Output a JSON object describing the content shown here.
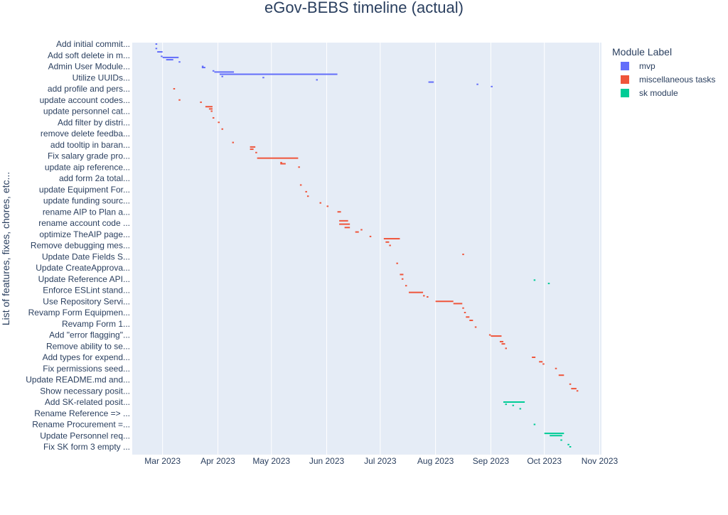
{
  "chart_data": {
    "type": "gantt",
    "title": "eGov-BEBS timeline (actual)",
    "xlabel": "",
    "ylabel": "List of features, fixes, chores, etc...",
    "x_ticks": [
      "Mar 2023",
      "Apr 2023",
      "May 2023",
      "Jun 2023",
      "Jul 2023",
      "Aug 2023",
      "Sep 2023",
      "Oct 2023",
      "Nov 2023"
    ],
    "x_tick_dates": [
      "2023-03-01",
      "2023-04-01",
      "2023-05-01",
      "2023-06-01",
      "2023-07-01",
      "2023-08-01",
      "2023-09-01",
      "2023-10-01",
      "2023-11-01"
    ],
    "xlim": [
      "2023-02-12",
      "2023-11-02"
    ],
    "y_labels": [
      "Add initial commit...",
      "Add soft delete in m...",
      "Admin User Module...",
      "Utilize UUIDs...",
      "add profile and pers...",
      "update account codes...",
      "update personnel cat...",
      "Add filter by distri...",
      "remove delete feedba...",
      "add tooltip in baran...",
      "Fix salary grade pro...",
      "update aip reference...",
      "add form 2a total...",
      "update Equipment For...",
      "update funding sourc...",
      "rename AIP to Plan a...",
      "rename account code ...",
      "optimize TheAIP page...",
      "Remove debugging mes...",
      "Update Date Fields S...",
      "Update CreateApprova...",
      "Update Reference API...",
      "Enforce ESLint stand...",
      "Use Repository Servi...",
      "Revamp Form Equipmen...",
      "Revamp Form 1...",
      "Add \"error flagging\"...",
      "Remove ability to se...",
      "Add types for expend...",
      "Fix permissions seed...",
      "Update README.md and...",
      "Show necessary posit...",
      "Add SK-related posit...",
      "Rename Reference => ...",
      "Rename Procurement =...",
      "Update Personnel req...",
      "Fix SK form 3 empty ..."
    ],
    "legend_title": "Module Label",
    "legend_position": "top-right",
    "grid": true,
    "series": [
      {
        "name": "mvp",
        "color": "#636efa",
        "tasks": [
          {
            "row": 0,
            "start": "2023-02-25",
            "end": "2023-02-26"
          },
          {
            "row": 0.4,
            "start": "2023-02-25",
            "end": "2023-02-26"
          },
          {
            "row": 0.7,
            "start": "2023-02-26",
            "end": "2023-03-01"
          },
          {
            "row": 1.1,
            "start": "2023-02-28",
            "end": "2023-03-01"
          },
          {
            "row": 1.2,
            "start": "2023-03-01",
            "end": "2023-03-10"
          },
          {
            "row": 1.4,
            "start": "2023-03-03",
            "end": "2023-03-07"
          },
          {
            "row": 1.6,
            "start": "2023-03-10",
            "end": "2023-03-11"
          },
          {
            "row": 2.0,
            "start": "2023-03-23",
            "end": "2023-03-24"
          },
          {
            "row": 2.1,
            "start": "2023-03-23",
            "end": "2023-03-25"
          },
          {
            "row": 2.4,
            "start": "2023-03-29",
            "end": "2023-03-30"
          },
          {
            "row": 2.5,
            "start": "2023-03-30",
            "end": "2023-04-10"
          },
          {
            "row": 2.7,
            "start": "2023-04-02",
            "end": "2023-06-07"
          },
          {
            "row": 2.9,
            "start": "2023-04-03",
            "end": "2023-04-04"
          },
          {
            "row": 3.0,
            "start": "2023-04-26",
            "end": "2023-04-27"
          },
          {
            "row": 3.2,
            "start": "2023-05-26",
            "end": "2023-05-27"
          },
          {
            "row": 3.4,
            "start": "2023-07-28",
            "end": "2023-07-31"
          },
          {
            "row": 3.6,
            "start": "2023-08-24",
            "end": "2023-08-25"
          },
          {
            "row": 3.8,
            "start": "2023-09-01",
            "end": "2023-09-02"
          }
        ]
      },
      {
        "name": "miscellaneous tasks",
        "color": "#ef553b",
        "tasks": [
          {
            "row": 4.0,
            "start": "2023-03-07",
            "end": "2023-03-08"
          },
          {
            "row": 5.0,
            "start": "2023-03-10",
            "end": "2023-03-11"
          },
          {
            "row": 5.2,
            "start": "2023-03-22",
            "end": "2023-03-23"
          },
          {
            "row": 5.6,
            "start": "2023-03-25",
            "end": "2023-03-29"
          },
          {
            "row": 5.8,
            "start": "2023-03-27",
            "end": "2023-03-29"
          },
          {
            "row": 6.0,
            "start": "2023-03-28",
            "end": "2023-03-29"
          },
          {
            "row": 6.6,
            "start": "2023-03-29",
            "end": "2023-03-30"
          },
          {
            "row": 7.0,
            "start": "2023-04-01",
            "end": "2023-04-02"
          },
          {
            "row": 7.6,
            "start": "2023-04-03",
            "end": "2023-04-04"
          },
          {
            "row": 8.8,
            "start": "2023-04-09",
            "end": "2023-04-10"
          },
          {
            "row": 9.2,
            "start": "2023-04-19",
            "end": "2023-04-22"
          },
          {
            "row": 9.4,
            "start": "2023-04-19",
            "end": "2023-04-21"
          },
          {
            "row": 9.7,
            "start": "2023-04-22",
            "end": "2023-04-23"
          },
          {
            "row": 10.2,
            "start": "2023-04-23",
            "end": "2023-05-16"
          },
          {
            "row": 10.6,
            "start": "2023-05-06",
            "end": "2023-05-07"
          },
          {
            "row": 10.7,
            "start": "2023-05-06",
            "end": "2023-05-09"
          },
          {
            "row": 11.0,
            "start": "2023-05-16",
            "end": "2023-05-17"
          },
          {
            "row": 12.6,
            "start": "2023-05-17",
            "end": "2023-05-18"
          },
          {
            "row": 13.2,
            "start": "2023-05-20",
            "end": "2023-05-21"
          },
          {
            "row": 13.6,
            "start": "2023-05-21",
            "end": "2023-05-22"
          },
          {
            "row": 14.2,
            "start": "2023-05-28",
            "end": "2023-05-29"
          },
          {
            "row": 14.5,
            "start": "2023-06-01",
            "end": "2023-06-02"
          },
          {
            "row": 15.0,
            "start": "2023-06-07",
            "end": "2023-06-09"
          },
          {
            "row": 15.8,
            "start": "2023-06-08",
            "end": "2023-06-13"
          },
          {
            "row": 16.1,
            "start": "2023-06-08",
            "end": "2023-06-14"
          },
          {
            "row": 16.4,
            "start": "2023-06-11",
            "end": "2023-06-14"
          },
          {
            "row": 16.6,
            "start": "2023-06-20",
            "end": "2023-06-21"
          },
          {
            "row": 16.8,
            "start": "2023-06-17",
            "end": "2023-06-19"
          },
          {
            "row": 17.2,
            "start": "2023-06-25",
            "end": "2023-06-26"
          },
          {
            "row": 17.4,
            "start": "2023-07-03",
            "end": "2023-07-12"
          },
          {
            "row": 17.7,
            "start": "2023-07-04",
            "end": "2023-07-06"
          },
          {
            "row": 18.0,
            "start": "2023-07-06",
            "end": "2023-07-07"
          },
          {
            "row": 18.8,
            "start": "2023-08-16",
            "end": "2023-08-17"
          },
          {
            "row": 19.6,
            "start": "2023-07-10",
            "end": "2023-07-11"
          },
          {
            "row": 20.6,
            "start": "2023-07-12",
            "end": "2023-07-14"
          },
          {
            "row": 21.0,
            "start": "2023-07-13",
            "end": "2023-07-14"
          },
          {
            "row": 21.6,
            "start": "2023-07-15",
            "end": "2023-07-16"
          },
          {
            "row": 22.2,
            "start": "2023-07-17",
            "end": "2023-07-25"
          },
          {
            "row": 22.5,
            "start": "2023-07-25",
            "end": "2023-07-26"
          },
          {
            "row": 22.6,
            "start": "2023-07-27",
            "end": "2023-07-28"
          },
          {
            "row": 23.0,
            "start": "2023-08-01",
            "end": "2023-08-11"
          },
          {
            "row": 23.2,
            "start": "2023-08-11",
            "end": "2023-08-16"
          },
          {
            "row": 23.6,
            "start": "2023-08-16",
            "end": "2023-08-17"
          },
          {
            "row": 24.0,
            "start": "2023-08-17",
            "end": "2023-08-18"
          },
          {
            "row": 24.4,
            "start": "2023-08-18",
            "end": "2023-08-20"
          },
          {
            "row": 24.7,
            "start": "2023-08-20",
            "end": "2023-08-22"
          },
          {
            "row": 25.3,
            "start": "2023-08-23",
            "end": "2023-08-24"
          },
          {
            "row": 26.0,
            "start": "2023-08-31",
            "end": "2023-09-01"
          },
          {
            "row": 26.1,
            "start": "2023-09-01",
            "end": "2023-09-07"
          },
          {
            "row": 26.6,
            "start": "2023-09-06",
            "end": "2023-09-08"
          },
          {
            "row": 26.8,
            "start": "2023-09-07",
            "end": "2023-09-09"
          },
          {
            "row": 27.2,
            "start": "2023-09-09",
            "end": "2023-09-10"
          },
          {
            "row": 28.0,
            "start": "2023-09-24",
            "end": "2023-09-26"
          },
          {
            "row": 28.4,
            "start": "2023-09-28",
            "end": "2023-09-30"
          },
          {
            "row": 28.6,
            "start": "2023-09-30",
            "end": "2023-10-01"
          },
          {
            "row": 29.0,
            "start": "2023-10-07",
            "end": "2023-10-08"
          },
          {
            "row": 29.6,
            "start": "2023-10-09",
            "end": "2023-10-12"
          },
          {
            "row": 30.4,
            "start": "2023-10-15",
            "end": "2023-10-16"
          },
          {
            "row": 30.8,
            "start": "2023-10-16",
            "end": "2023-10-19"
          },
          {
            "row": 31.0,
            "start": "2023-10-19",
            "end": "2023-10-20"
          }
        ]
      },
      {
        "name": "sk module",
        "color": "#00cc96",
        "tasks": [
          {
            "row": 21.1,
            "start": "2023-09-25",
            "end": "2023-09-26"
          },
          {
            "row": 21.4,
            "start": "2023-10-03",
            "end": "2023-10-04"
          },
          {
            "row": 32.0,
            "start": "2023-09-08",
            "end": "2023-09-20"
          },
          {
            "row": 32.2,
            "start": "2023-09-09",
            "end": "2023-09-10"
          },
          {
            "row": 32.3,
            "start": "2023-09-13",
            "end": "2023-09-14"
          },
          {
            "row": 32.6,
            "start": "2023-09-17",
            "end": "2023-09-18"
          },
          {
            "row": 34.0,
            "start": "2023-09-25",
            "end": "2023-09-26"
          },
          {
            "row": 34.8,
            "start": "2023-10-01",
            "end": "2023-10-12"
          },
          {
            "row": 35.0,
            "start": "2023-10-04",
            "end": "2023-10-11"
          },
          {
            "row": 35.4,
            "start": "2023-10-10",
            "end": "2023-10-11"
          },
          {
            "row": 35.8,
            "start": "2023-10-14",
            "end": "2023-10-15"
          },
          {
            "row": 36.0,
            "start": "2023-10-15",
            "end": "2023-10-16"
          }
        ]
      }
    ]
  }
}
